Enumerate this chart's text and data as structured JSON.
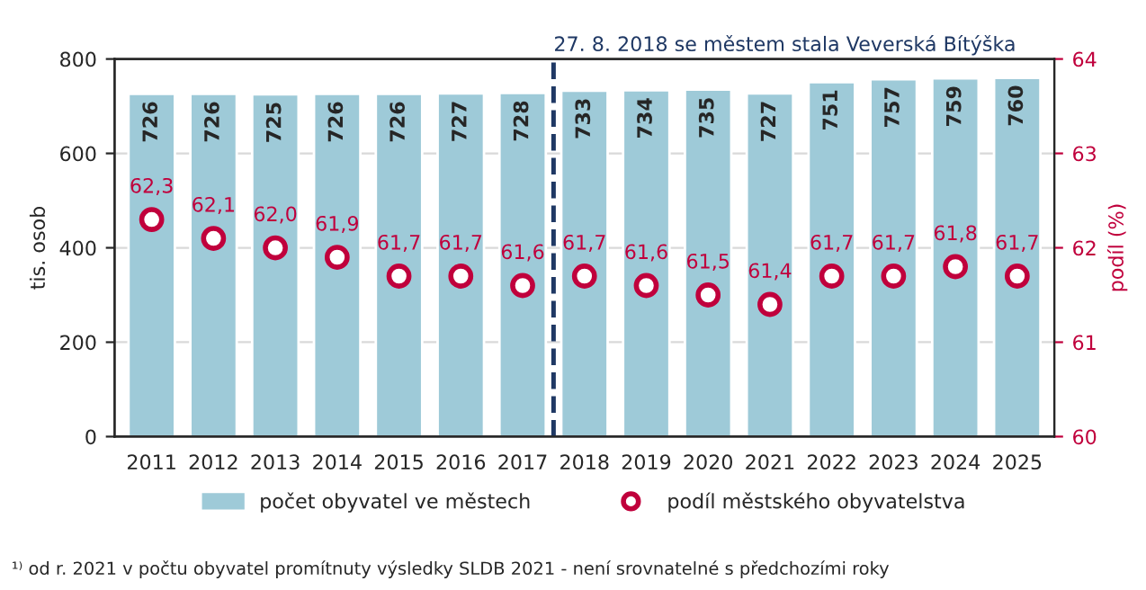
{
  "chart_data": {
    "type": "bar",
    "categories": [
      "2011",
      "2012",
      "2013",
      "2014",
      "2015",
      "2016",
      "2017",
      "2018",
      "2019",
      "2020",
      "2021",
      "2022",
      "2023",
      "2024",
      "2025"
    ],
    "ylabel": "tis. osob",
    "y2label": "podíl (%)",
    "ylim": [
      0,
      800
    ],
    "yticks": [
      0,
      200,
      400,
      600,
      800
    ],
    "y2lim": [
      60,
      64
    ],
    "y2ticks": [
      60,
      61,
      62,
      63,
      64
    ],
    "grid": "y",
    "legend": "bottom",
    "data_labels": true,
    "series": [
      {
        "name": "počet obyvatel ve městech",
        "color": "#9ecad8",
        "values": [
          726,
          726,
          725,
          726,
          726,
          727,
          728,
          733,
          734,
          735,
          727,
          751,
          757,
          759,
          760
        ]
      },
      {
        "name": "podíl městského obyvatelstva",
        "type": "scatter",
        "axis": "y2",
        "color": "#c0003c",
        "marker": "circle",
        "values": [
          62.3,
          62.1,
          62.0,
          61.9,
          61.7,
          61.7,
          61.6,
          61.7,
          61.6,
          61.5,
          61.4,
          61.7,
          61.7,
          61.8,
          61.7
        ],
        "value_labels": [
          "62,3",
          "62,1",
          "62,0",
          "61,9",
          "61,7",
          "61,7",
          "61,6",
          "61,7",
          "61,6",
          "61,5",
          "61,4",
          "61,7",
          "61,7",
          "61,8",
          "61,7"
        ]
      }
    ],
    "ref_lines": [
      {
        "axis": "x",
        "value": "2018",
        "label": "27. 8. 2018 se městem stala Veverská Bítýška",
        "color": "#1f3864",
        "line_style": "dashed"
      }
    ],
    "annotations": [
      "¹⁾ od r. 2021 v počtu obyvatel promítnuty výsledky SLDB 2021 - není srovnatelné s předchozími roky"
    ]
  }
}
